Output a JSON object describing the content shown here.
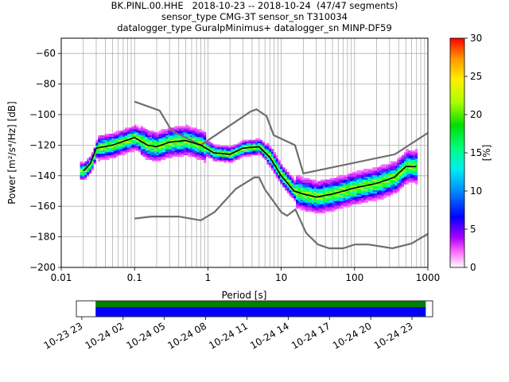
{
  "title": {
    "line1": "BK.PINL.00.HHE   2018-10-23 -- 2018-10-24  (47/47 segments)",
    "line2": "sensor_type CMG-3T sensor_sn T310034",
    "line3": "datalogger_type GuralpMinimus+ datalogger_sn MINP-DF59"
  },
  "chart_data": {
    "type": "heatmap",
    "xlabel": "Period [s]",
    "ylabel": "Power [m²/s⁴/Hz] [dB]",
    "x_scale": "log",
    "xlim": [
      0.01,
      1000
    ],
    "ylim": [
      -200,
      -50
    ],
    "x_ticks": [
      0.01,
      0.1,
      1,
      10,
      100,
      1000
    ],
    "x_tick_labels": [
      "0.01",
      "0.1",
      "1",
      "10",
      "100",
      "1000"
    ],
    "y_ticks": [
      -200,
      -180,
      -160,
      -140,
      -120,
      -100,
      -80,
      -60
    ],
    "y_tick_labels": [
      "−200",
      "−180",
      "−160",
      "−140",
      "−120",
      "−100",
      "−80",
      "−60"
    ],
    "grid": true,
    "colorbar": {
      "label": "[%]",
      "range": [
        0,
        30
      ],
      "ticks": [
        0,
        5,
        10,
        15,
        20,
        25,
        30
      ],
      "tick_labels": [
        "0",
        "5",
        "10",
        "15",
        "20",
        "25",
        "30"
      ]
    },
    "mean_curve": {
      "period": [
        0.02,
        0.025,
        0.03,
        0.05,
        0.1,
        0.15,
        0.2,
        0.3,
        0.5,
        0.8,
        1.2,
        2,
        3,
        5,
        7,
        10,
        15,
        20,
        30,
        50,
        100,
        200,
        350,
        500,
        700
      ],
      "power": [
        -137,
        -132,
        -122,
        -120,
        -115,
        -120,
        -121,
        -118,
        -117,
        -120,
        -125,
        -126,
        -122,
        -121,
        -128,
        -140,
        -150,
        -152,
        -154,
        -152,
        -148,
        -145,
        -141,
        -134,
        -134
      ]
    },
    "nhnm": {
      "period": [
        0.1,
        0.22,
        0.32,
        0.8,
        3.8,
        4.6,
        6.3,
        7.9,
        15.4,
        20,
        354.8,
        1000
      ],
      "power": [
        -91.5,
        -97.4,
        -110.5,
        -120,
        -98,
        -96.5,
        -101,
        -113.5,
        -120,
        -138.5,
        -126,
        -112
      ]
    },
    "nlnm": {
      "period": [
        0.1,
        0.17,
        0.4,
        0.8,
        1.24,
        2.4,
        4.3,
        5,
        6,
        10,
        12,
        15.6,
        21.9,
        31.6,
        45,
        70,
        101,
        154,
        328,
        600,
        1000
      ],
      "power": [
        -168,
        -166.7,
        -166.7,
        -169.2,
        -163.7,
        -148.6,
        -141.1,
        -141.1,
        -149,
        -163.8,
        -166.2,
        -162.1,
        -177.5,
        -185,
        -187.5,
        -187.5,
        -185,
        -185,
        -187.5,
        -184.4,
        -178
      ]
    },
    "timeline": {
      "ticks": [
        "10-23 23",
        "10-24 02",
        "10-24 05",
        "10-24 08",
        "10-24 11",
        "10-24 14",
        "10-24 17",
        "10-24 20",
        "10-24 23"
      ],
      "start_hour": -1.4,
      "end_hour": 24.5,
      "segment_start_hour": 0,
      "segment_end_hour": 24,
      "colors": {
        "available": "#0000ff",
        "used": "#008000"
      }
    }
  }
}
